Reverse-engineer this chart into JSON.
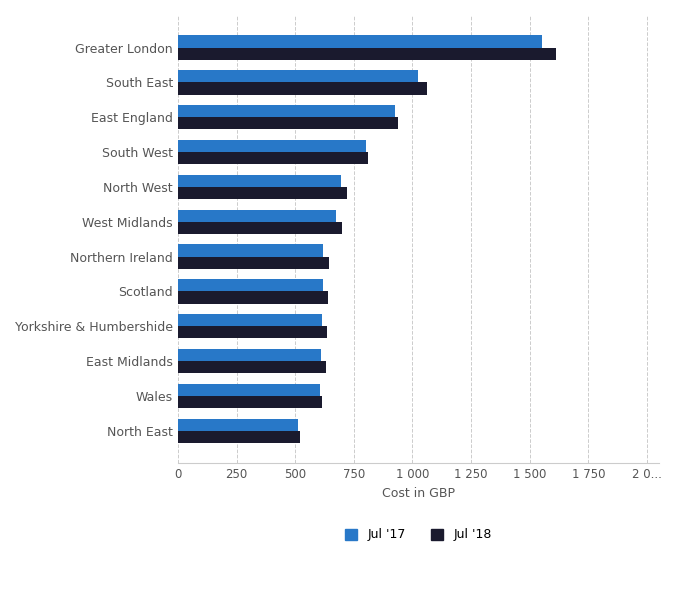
{
  "categories": [
    "Greater London",
    "South East",
    "East England",
    "South West",
    "North West",
    "West Midlands",
    "Northern Ireland",
    "Scotland",
    "Yorkshire & Humbershide",
    "East Midlands",
    "Wales",
    "North East"
  ],
  "jul17": [
    1550,
    1025,
    925,
    800,
    695,
    675,
    620,
    620,
    615,
    612,
    605,
    510
  ],
  "jul18": [
    1610,
    1060,
    940,
    810,
    720,
    700,
    645,
    640,
    635,
    630,
    615,
    520
  ],
  "color_jul17": "#2878c8",
  "color_jul18": "#1a1a2e",
  "xlabel": "Cost in GBP",
  "xlim": [
    0,
    2050
  ],
  "xticks": [
    0,
    250,
    500,
    750,
    1000,
    1250,
    1500,
    1750,
    2000
  ],
  "xtick_labels": [
    "0",
    "250",
    "500",
    "750",
    "1 000",
    "1 250",
    "1 500",
    "1 750",
    "2 0..."
  ],
  "legend_jul17": "Jul '17",
  "legend_jul18": "Jul '18",
  "bar_height": 0.35,
  "background_color": "#ffffff",
  "grid_color": "#cccccc"
}
